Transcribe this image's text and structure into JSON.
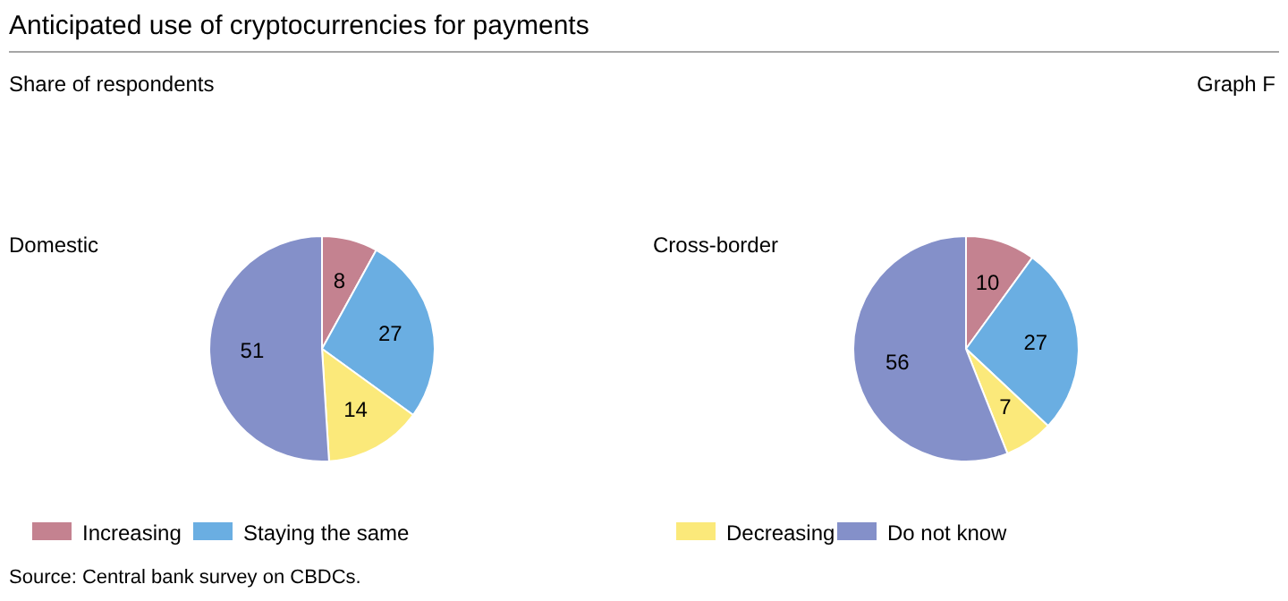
{
  "chart_data": [
    {
      "type": "pie",
      "title": "Domestic",
      "categories": [
        "Increasing",
        "Staying the same",
        "Decreasing",
        "Do not know"
      ],
      "values": [
        8,
        27,
        14,
        51
      ],
      "colors": [
        "#c48290",
        "#6aaee2",
        "#fbe97a",
        "#8490c9"
      ],
      "data_labels": true,
      "legend": "bottom",
      "annotations": [
        "Anticipated use of cryptocurrencies for payments",
        "Share of respondents",
        "Graph F",
        "Source: Central bank survey on CBDCs."
      ]
    },
    {
      "type": "pie",
      "title": "Cross-border",
      "categories": [
        null,
        null,
        null,
        null
      ],
      "values": [
        10,
        27,
        7,
        56
      ],
      "colors": [
        "#c48290",
        "#6aaee2",
        "#fbe97a",
        "#8490c9"
      ],
      "data_labels": true
    }
  ]
}
